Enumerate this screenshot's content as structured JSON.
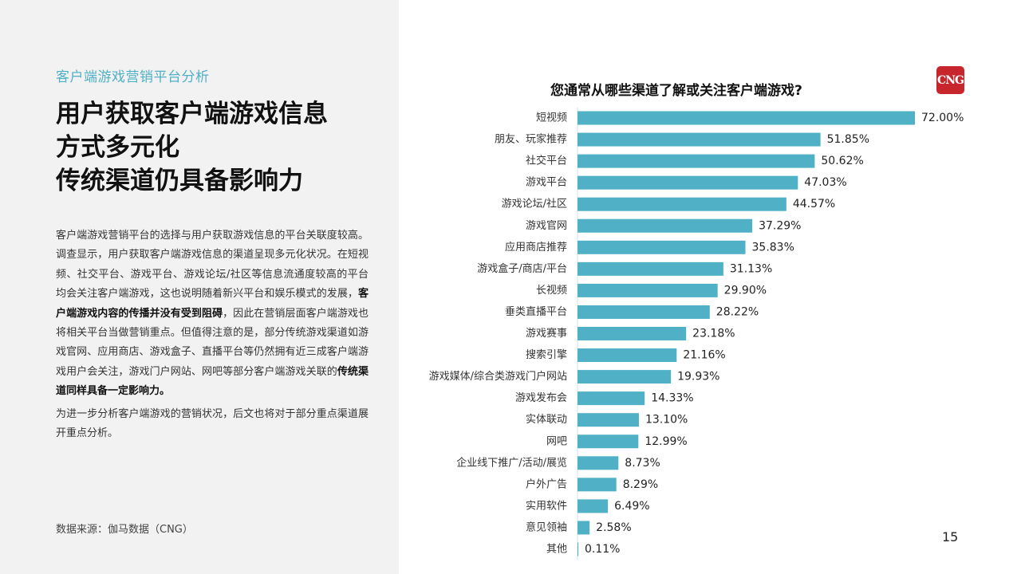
{
  "left": {
    "section_label": "客户端游戏营销平台分析",
    "headline": [
      "用户获取客户端游戏信息",
      "方式多元化",
      "传统渠道仍具备影响力"
    ],
    "body": {
      "p1_a": "客户端游戏营销平台的选择与用户获取游戏信息的平台关联度较高。调查显示，用户获取客户端游戏信息的渠道呈现多元化状况。在短视频、社交平台、游戏平台、游戏论坛/社区等信息流通度较高的平台均会关注客户端游戏，这也说明随着新兴平台和娱乐模式的发展，",
      "p1_b": "客户端游戏内容的传播并没有受到阻碍",
      "p1_c": "，因此在营销层面客户端游戏也将相关平台当做营销重点。但值得注意的是，部分传统游戏渠道如游戏官网、应用商店、游戏盒子、直播平台等仍然拥有近三成客户端游戏用户会关注，游戏门户网站、网吧等部分客户端游戏关联的",
      "p1_d": "传统渠道同样具备一定影响力。",
      "p2": "为进一步分析客户端游戏的营销状况，后文也将对于部分重点渠道展开重点分析。"
    },
    "source": "数据来源：伽马数据（CNG）"
  },
  "logo_text": "CNG",
  "page_number": "15",
  "colors": {
    "bar": "#4fb0c6",
    "accent": "#4fb0c6",
    "logo": "#c7262c"
  },
  "chart_data": {
    "type": "bar",
    "orientation": "horizontal",
    "title": "您通常从哪些渠道了解或关注客户端游戏?",
    "categories": [
      "短视频",
      "朋友、玩家推荐",
      "社交平台",
      "游戏平台",
      "游戏论坛/社区",
      "游戏官网",
      "应用商店推荐",
      "游戏盒子/商店/平台",
      "长视频",
      "垂类直播平台",
      "游戏赛事",
      "搜索引擎",
      "游戏媒体/综合类游戏门户网站",
      "游戏发布会",
      "实体联动",
      "网吧",
      "企业线下推广/活动/展览",
      "户外广告",
      "实用软件",
      "意见领袖",
      "其他"
    ],
    "values": [
      72.0,
      51.85,
      50.62,
      47.03,
      44.57,
      37.29,
      35.83,
      31.13,
      29.9,
      28.22,
      23.18,
      21.16,
      19.93,
      14.33,
      13.1,
      12.99,
      8.73,
      8.29,
      6.49,
      2.58,
      0.11
    ],
    "labels": [
      "72.00%",
      "51.85%",
      "50.62%",
      "47.03%",
      "44.57%",
      "37.29%",
      "35.83%",
      "31.13%",
      "29.90%",
      "28.22%",
      "23.18%",
      "21.16%",
      "19.93%",
      "14.33%",
      "13.10%",
      "12.99%",
      "8.73%",
      "8.29%",
      "6.49%",
      "2.58%",
      "0.11%"
    ],
    "unit": "%",
    "xlim": [
      0,
      72
    ],
    "grid": false,
    "legend": "none"
  }
}
